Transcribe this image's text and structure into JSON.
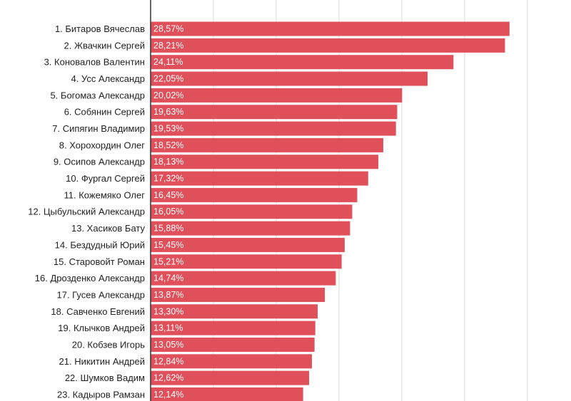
{
  "chart_data": {
    "type": "bar",
    "orientation": "horizontal",
    "title": "",
    "xlabel": "",
    "ylabel": "",
    "xlim": [
      0,
      30
    ],
    "grid": true,
    "legend": "none",
    "bar_color": "#e0505a",
    "categories": [
      "1. Битаров Вячеслав",
      "2. Жвачкин Сергей",
      "3. Коновалов Валентин",
      "4. Усс Александр",
      "5. Богомаз Александр",
      "6. Собянин Сергей",
      "7. Сипягин Владимир",
      "8. Хорохордин Олег",
      "9. Осипов Александр",
      "10. Фургал Сергей",
      "11. Кожемяко Олег",
      "12. Цыбульский Александр",
      "13. Хасиков Бату",
      "14. Бездудный Юрий",
      "15. Старовойт Роман",
      "16. Дрозденко Александр",
      "17. Гусев Александр",
      "18. Савченко Евгений",
      "19. Клычков Андрей",
      "20. Кобзев Игорь",
      "21. Никитин Андрей",
      "22. Шумков Вадим",
      "23. Кадыров Рамзан"
    ],
    "values": [
      28.57,
      28.21,
      24.11,
      22.05,
      20.02,
      19.63,
      19.53,
      18.52,
      18.13,
      17.32,
      16.45,
      16.05,
      15.88,
      15.45,
      15.21,
      14.74,
      13.87,
      13.3,
      13.11,
      13.05,
      12.84,
      12.62,
      12.14
    ],
    "data_labels": [
      "28,57%",
      "28,21%",
      "24,11%",
      "22,05%",
      "20,02%",
      "19,63%",
      "19,53%",
      "18,52%",
      "18,13%",
      "17,32%",
      "16,45%",
      "16,05%",
      "15,88%",
      "15,45%",
      "15,21%",
      "14,74%",
      "13,87%",
      "13,30%",
      "13,11%",
      "13,05%",
      "12,84%",
      "12,62%",
      "12,14%"
    ]
  }
}
